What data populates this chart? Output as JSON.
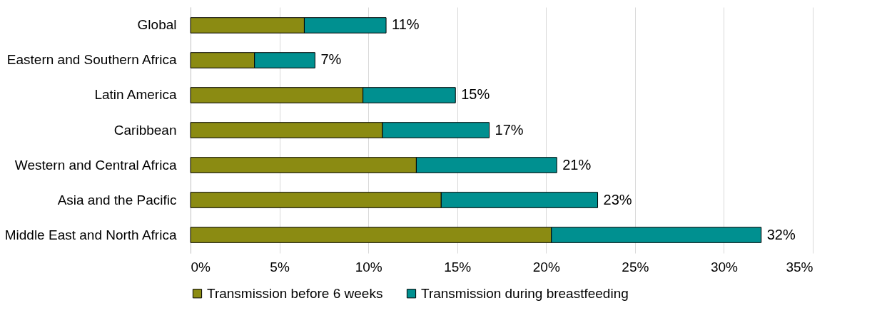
{
  "chart_data": {
    "type": "bar",
    "orientation": "horizontal",
    "stacked": true,
    "categories": [
      "Global",
      "Eastern and Southern Africa",
      "Latin America",
      "Caribbean",
      "Western and Central Africa",
      "Asia and the Pacific",
      "Middle East and North Africa"
    ],
    "series": [
      {
        "name": "Transmission before 6 weeks",
        "color": "#8b8b12",
        "values": [
          6.4,
          3.6,
          9.7,
          10.8,
          12.7,
          14.1,
          20.3
        ]
      },
      {
        "name": "Transmission during breastfeeding",
        "color": "#009090",
        "values": [
          4.6,
          3.4,
          5.2,
          6.0,
          7.9,
          8.8,
          11.8
        ]
      }
    ],
    "totals": [
      "11%",
      "7%",
      "15%",
      "17%",
      "21%",
      "23%",
      "32%"
    ],
    "xlim": [
      0,
      35
    ],
    "xticks": [
      {
        "value": 0,
        "label": "0%"
      },
      {
        "value": 5,
        "label": "5%"
      },
      {
        "value": 10,
        "label": "10%"
      },
      {
        "value": 15,
        "label": "15%"
      },
      {
        "value": 20,
        "label": "20%"
      },
      {
        "value": 25,
        "label": "25%"
      },
      {
        "value": 30,
        "label": "30%"
      },
      {
        "value": 35,
        "label": "35%"
      }
    ],
    "grid": "x",
    "legend": "bottom"
  }
}
